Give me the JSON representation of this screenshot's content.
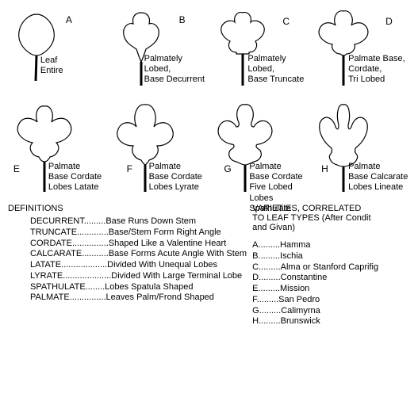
{
  "leaves": {
    "row1": [
      {
        "letter": "A",
        "caption": "Leaf\nEntire"
      },
      {
        "letter": "B",
        "caption": "Palmately\nLobed,\nBase Decurrent"
      },
      {
        "letter": "C",
        "caption": "Palmately\nLobed,\nBase Truncate"
      },
      {
        "letter": "D",
        "caption": "Palmate Base,\nCordate,\nTri Lobed"
      }
    ],
    "row2": [
      {
        "letter": "E",
        "caption": "Palmate\nBase Cordate\nLobes Latate"
      },
      {
        "letter": "F",
        "caption": "Palmate\nBase Cordate\nLobes Lyrate"
      },
      {
        "letter": "G",
        "caption": "Palmate\nBase Cordate\nFive Lobed\nLobes Spathulate"
      },
      {
        "letter": "H",
        "caption": "Palmate\nBase Calcarate\nLobes Lineate"
      }
    ]
  },
  "definitions": {
    "title": "DEFINITIONS",
    "items": [
      "DECURRENT.........Base Runs Down Stem",
      "TRUNCATE.............Base/Stem Form Right Angle",
      "CORDATE...............Shaped Like a Valentine Heart",
      "CALCARATE...........Base Forms Acute Angle With Stem",
      "LATATE...................Divided With Unequal Lobes",
      "LYRATE....................Divided With Large Terminal Lobe",
      "SPATHULATE........Lobes Spatula Shaped",
      "PALMATE...............Leaves Palm/Frond Shaped"
    ]
  },
  "varieties": {
    "title": "VARIETIES, CORRELATED\nTO LEAF TYPES (After Condit\nand Givan)",
    "items": [
      "A.........Hamma",
      "B.........Ischia",
      "C.........Alma or Stanford Caprifig",
      "D.........Constantine",
      "E.........Mission",
      "F.........San Pedro",
      "G.........Calimyrna",
      "H.........Brunswick"
    ]
  },
  "style": {
    "stroke": "#000000",
    "stroke_width": 1.2,
    "stem_width": 3,
    "background": "#ffffff"
  }
}
